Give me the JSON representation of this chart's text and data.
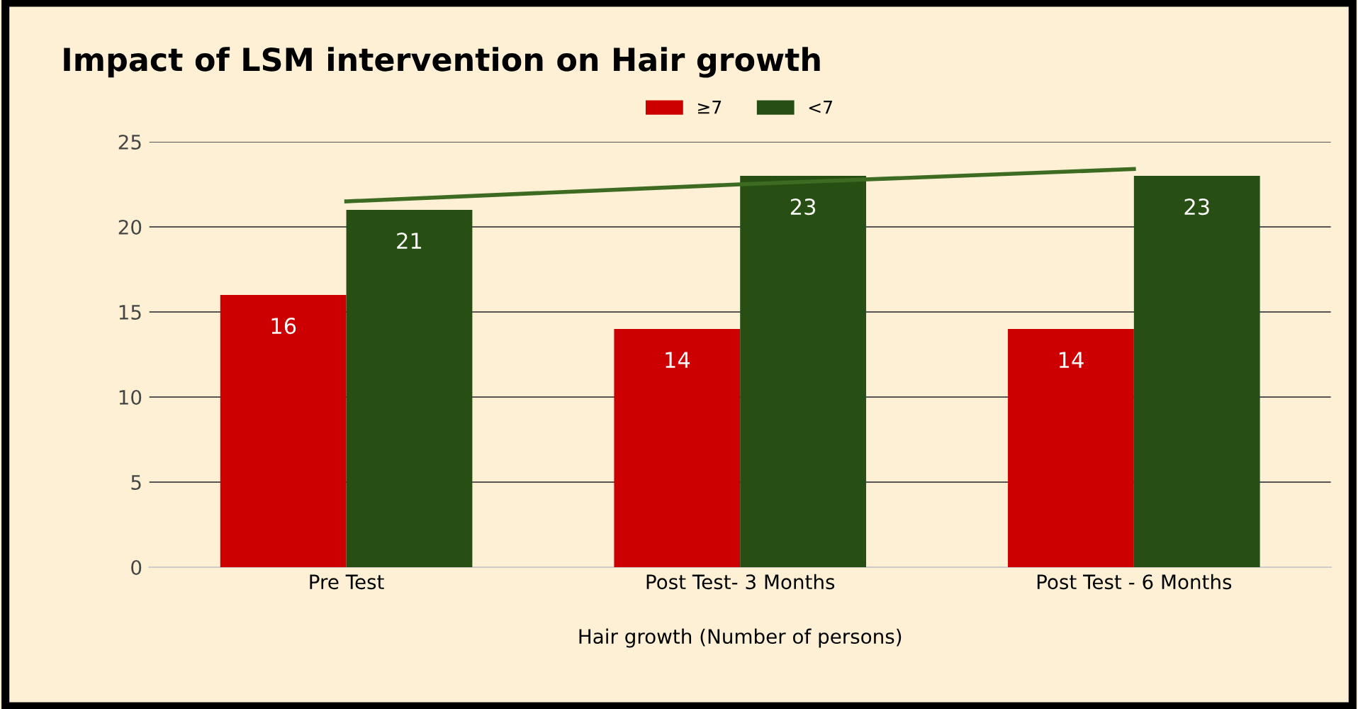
{
  "chart_data": {
    "type": "bar",
    "title": "Impact of LSM intervention on Hair growth",
    "xlabel": "Hair growth (Number of persons)",
    "categories": [
      "Pre Test",
      "Post Test- 3 Months",
      "Post Test - 6 Months"
    ],
    "series": [
      {
        "name": "≥7",
        "color": "#cc0000",
        "values": [
          16,
          14,
          14
        ],
        "value_labels": [
          "16",
          "14",
          "14"
        ]
      },
      {
        "name": "<7",
        "color": "#274e13",
        "values": [
          21,
          23,
          23
        ],
        "value_labels": [
          "21",
          "23",
          "23"
        ]
      },
      {
        "type": "line",
        "color": "#3d6b22",
        "values": [
          21.5,
          22.5,
          23.4
        ]
      }
    ],
    "ylim": [
      0,
      25
    ],
    "yticks": [
      0,
      5,
      10,
      15,
      20,
      25
    ],
    "grid": "y",
    "legend": "top"
  }
}
